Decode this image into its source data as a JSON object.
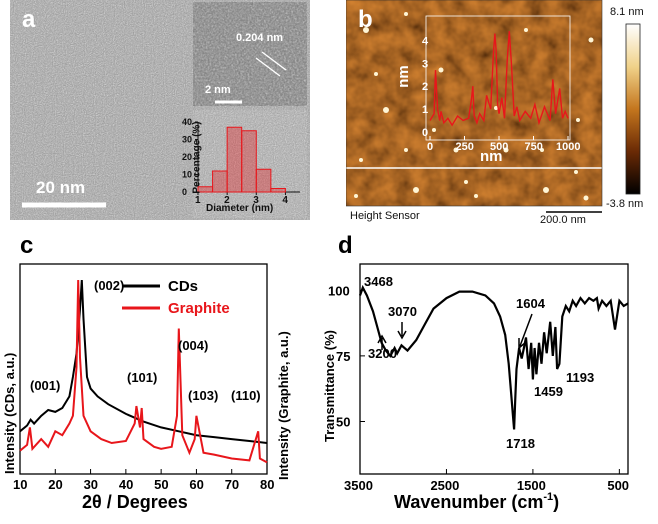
{
  "panel_a": {
    "label": "a",
    "scalebar": "20 nm",
    "inset_scalebar": "2 nm",
    "lattice": "0.204 nm",
    "hist": {
      "xlabel": "Diameter (nm)",
      "ylabel": "Percentage (%)",
      "xticks": [
        "1",
        "2",
        "3",
        "4"
      ],
      "yticks": [
        "0",
        "10",
        "20",
        "30",
        "40"
      ]
    }
  },
  "panel_b": {
    "label": "b",
    "color_max": "8.1 nm",
    "color_min": "-3.8 nm",
    "sensor": "Height Sensor",
    "scalebar": "200.0 nm",
    "profile": {
      "xlabel": "nm",
      "ylabel": "nm",
      "xticks": [
        "0",
        "250",
        "500",
        "750",
        "1000"
      ],
      "yticks": [
        "0",
        "1",
        "2",
        "3",
        "4"
      ]
    }
  },
  "panel_c": {
    "label": "c",
    "xlabel": "2θ / Degrees",
    "ylabel_left": "Intensity (CDs, a.u.)",
    "ylabel_right": "Intensity (Graphite, a.u.)",
    "xticks": [
      "10",
      "20",
      "30",
      "40",
      "50",
      "60",
      "70",
      "80"
    ],
    "annotations": [
      "(001)",
      "(002)",
      "(101)",
      "(004)",
      "(103)",
      "(110)"
    ]
  },
  "panel_d": {
    "label": "d",
    "xlabel": "Wavenumber (cm",
    "xlabel_sup": "-1",
    "xlabel_close": ")",
    "ylabel": "Transmittance (%)",
    "xticks": [
      "3500",
      "2500",
      "1500",
      "500"
    ],
    "yticks": [
      "50",
      "75",
      "100"
    ],
    "annotations": [
      "3468",
      "3070",
      "3200",
      "1604",
      "1459",
      "1193",
      "1718"
    ]
  },
  "chart_data": [
    {
      "type": "bar",
      "panel": "a-inset",
      "xlabel": "Diameter (nm)",
      "ylabel": "Percentage (%)",
      "categories": [
        "1.25",
        "1.75",
        "2.25",
        "2.75",
        "3.25",
        "3.75"
      ],
      "values": [
        3,
        12,
        37,
        35,
        13,
        2
      ],
      "xlim": [
        1,
        4.5
      ],
      "ylim": [
        0,
        40
      ]
    },
    {
      "type": "line",
      "panel": "b-inset",
      "xlabel": "nm",
      "ylabel": "nm",
      "xlim": [
        0,
        1000
      ],
      "ylim": [
        0,
        4.8
      ],
      "series": [
        {
          "color": "#e8161b",
          "x": [
            0,
            30,
            40,
            55,
            70,
            80,
            100,
            130,
            160,
            200,
            240,
            280,
            300,
            310,
            320,
            340,
            360,
            390,
            410,
            440,
            460,
            470,
            480,
            490,
            500,
            520,
            540,
            560,
            575,
            590,
            610,
            630,
            650,
            690,
            730,
            760,
            790,
            830,
            870,
            890,
            910,
            940,
            960,
            980,
            1000
          ],
          "y": [
            0.5,
            0.8,
            2.7,
            1.0,
            0.5,
            0.9,
            0.4,
            0.6,
            0.3,
            0.7,
            0.5,
            0.6,
            1.4,
            2.0,
            0.7,
            0.4,
            0.8,
            0.5,
            1.6,
            1.0,
            3.5,
            4.3,
            3.5,
            1.2,
            0.8,
            1.5,
            0.6,
            3.2,
            4.4,
            3.0,
            0.7,
            1.1,
            0.5,
            0.9,
            0.6,
            1.2,
            0.4,
            1.1,
            0.5,
            2.3,
            0.8,
            1.9,
            0.6,
            0.9,
            0.6
          ]
        }
      ]
    },
    {
      "type": "line",
      "panel": "c",
      "xlabel": "2θ / Degrees",
      "xlim": [
        10,
        80
      ],
      "legend": "top-right",
      "series": [
        {
          "name": "CDs",
          "color": "#000000",
          "x": [
            10,
            12,
            13,
            14,
            16,
            18,
            20,
            22,
            24,
            25,
            26,
            27,
            27.5,
            28,
            29,
            30,
            32,
            35,
            40,
            45,
            50,
            55,
            60,
            65,
            70,
            75,
            80
          ],
          "y": [
            0.22,
            0.25,
            0.28,
            0.26,
            0.3,
            0.33,
            0.32,
            0.34,
            0.4,
            0.5,
            0.62,
            0.85,
            1.0,
            0.8,
            0.5,
            0.44,
            0.4,
            0.36,
            0.31,
            0.27,
            0.24,
            0.22,
            0.2,
            0.19,
            0.18,
            0.17,
            0.16
          ]
        },
        {
          "name": "Graphite",
          "color": "#e8161b",
          "x": [
            10,
            12,
            12.8,
            13.5,
            16,
            18,
            20,
            22,
            24,
            25,
            26,
            26.5,
            27,
            28,
            30,
            33,
            36,
            40,
            42.5,
            43,
            44,
            44.5,
            45,
            48,
            50,
            53,
            54.5,
            55,
            56,
            58,
            59.5,
            60,
            62,
            65,
            70,
            75,
            77.5,
            78,
            80
          ],
          "y": [
            0.12,
            0.15,
            0.24,
            0.13,
            0.18,
            0.14,
            0.22,
            0.2,
            0.26,
            0.3,
            0.55,
            1.0,
            0.6,
            0.3,
            0.22,
            0.18,
            0.16,
            0.17,
            0.26,
            0.35,
            0.24,
            0.34,
            0.18,
            0.14,
            0.13,
            0.14,
            0.3,
            0.75,
            0.2,
            0.11,
            0.18,
            0.3,
            0.11,
            0.1,
            0.08,
            0.07,
            0.22,
            0.08,
            0.06
          ]
        }
      ],
      "annotations": [
        "(001)",
        "(002)",
        "(101)",
        "(004)",
        "(103)",
        "(110)"
      ]
    },
    {
      "type": "line",
      "panel": "d",
      "xlabel": "Wavenumber (cm-1)",
      "ylabel": "Transmittance (%)",
      "xlim": [
        3500,
        400
      ],
      "ylim": [
        30,
        110
      ],
      "series": [
        {
          "color": "#000000",
          "x": [
            3500,
            3468,
            3420,
            3350,
            3300,
            3250,
            3200,
            3150,
            3100,
            3070,
            3020,
            2950,
            2850,
            2750,
            2650,
            2500,
            2350,
            2200,
            2050,
            1950,
            1880,
            1820,
            1780,
            1750,
            1730,
            1718,
            1705,
            1690,
            1660,
            1630,
            1604,
            1580,
            1550,
            1520,
            1500,
            1480,
            1459,
            1430,
            1400,
            1370,
            1340,
            1300,
            1270,
            1240,
            1220,
            1193,
            1160,
            1120,
            1080,
            1040,
            1000,
            950,
            900,
            850,
            800,
            760,
            740,
            700,
            650,
            600,
            550,
            500,
            450,
            400
          ],
          "y": [
            98,
            101,
            98,
            92,
            86,
            80,
            77,
            75,
            78,
            76,
            79,
            77,
            81,
            87,
            93,
            97,
            99.5,
            99.5,
            98,
            95,
            90,
            83,
            72,
            60,
            52,
            47,
            58,
            70,
            78,
            74,
            78,
            82,
            70,
            80,
            66,
            78,
            68,
            80,
            72,
            84,
            76,
            88,
            75,
            86,
            70,
            72,
            90,
            94,
            92,
            96,
            94,
            97,
            95,
            97,
            96,
            97,
            93,
            96,
            94,
            96,
            85,
            96,
            94,
            95
          ]
        }
      ],
      "annotations": [
        "3468",
        "3070",
        "3200",
        "1604",
        "1459",
        "1193",
        "1718"
      ]
    }
  ]
}
